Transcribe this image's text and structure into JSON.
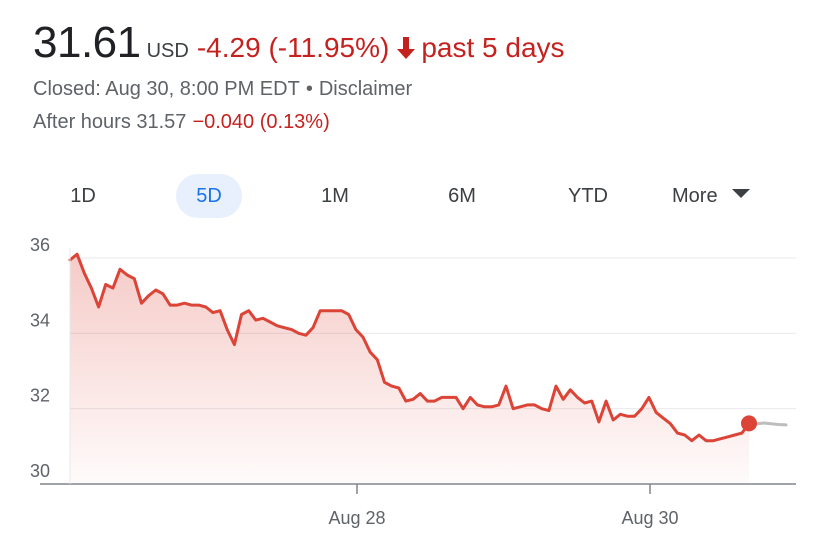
{
  "quote": {
    "price": "31.61",
    "currency": "USD",
    "change": "-4.29 (-11.95%)",
    "period": "past 5 days",
    "direction_icon": "arrow-down-icon",
    "closed_text": "Closed: Aug 30, 8:00 PM EDT",
    "separator": "•",
    "disclaimer": "Disclaimer",
    "after_hours_label": "After hours 31.57",
    "after_hours_change": "−0.040 (0.13%)"
  },
  "ranges": {
    "d1": "1D",
    "d5": "5D",
    "m1": "1M",
    "m6": "6M",
    "ytd": "YTD",
    "more": "More",
    "selected": "5D"
  },
  "colors": {
    "down": "#c5221f",
    "line": "#db4437",
    "accent": "#1a73e8",
    "grid": "#e8eaed",
    "after_hours_line": "#bdbdbd"
  },
  "chart_data": {
    "type": "area",
    "title": "",
    "xlabel": "",
    "ylabel": "",
    "ylim": [
      30,
      36.2
    ],
    "y_ticks": [
      "36",
      "34",
      "32",
      "30"
    ],
    "x_ticks": [
      "Aug 28",
      "Aug 30"
    ],
    "grid": true,
    "series": [
      {
        "values": [
          35.95,
          36.1,
          35.6,
          35.2,
          34.7,
          35.3,
          35.2,
          35.7,
          35.55,
          35.45,
          34.8,
          35.0,
          35.15,
          35.05,
          34.75,
          34.75,
          34.8,
          34.75,
          34.75,
          34.7,
          34.55,
          34.6,
          34.1,
          33.7,
          34.5,
          34.6,
          34.35,
          34.4,
          34.3,
          34.2,
          34.15,
          34.1,
          34.0,
          33.95,
          34.15,
          34.6,
          34.6,
          34.6,
          34.6,
          34.5,
          34.1,
          33.9,
          33.5,
          33.3,
          32.7,
          32.6,
          32.55,
          32.2,
          32.25,
          32.4,
          32.2,
          32.2,
          32.3,
          32.3,
          32.3,
          32.0,
          32.3,
          32.1,
          32.05,
          32.05,
          32.1,
          32.6,
          32.0,
          32.05,
          32.1,
          32.1,
          32.0,
          31.95,
          32.6,
          32.25,
          32.5,
          32.3,
          32.15,
          32.2,
          31.65,
          32.2,
          31.7,
          31.85,
          31.8,
          31.8,
          32.0,
          32.3,
          31.9,
          31.75,
          31.6,
          31.35,
          31.3,
          31.15,
          31.3,
          31.15,
          31.15,
          31.2,
          31.25,
          31.3,
          31.35,
          31.61
        ],
        "last_value": 31.61
      },
      {
        "values": [
          31.61,
          31.6,
          31.62,
          31.6,
          31.58,
          31.57
        ],
        "after_hours": true
      }
    ]
  }
}
